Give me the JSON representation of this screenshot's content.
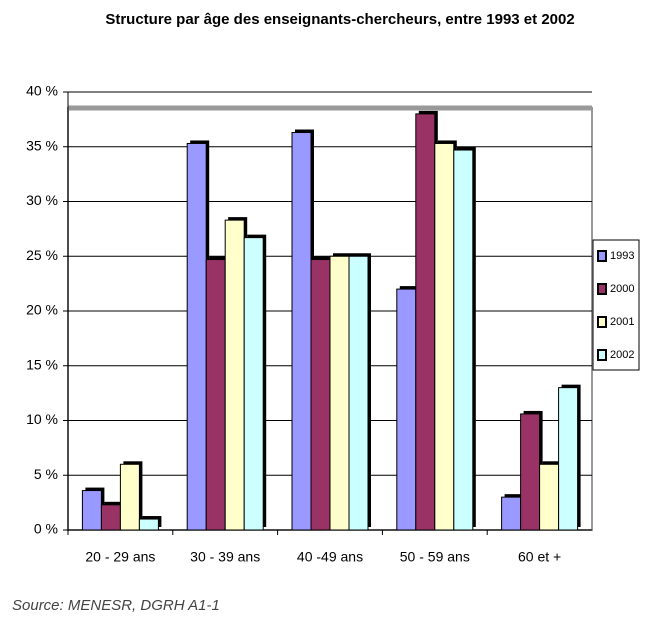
{
  "chart_data": {
    "type": "bar",
    "title": "Structure par âge des enseignants-chercheurs, entre 1993 et 2002",
    "source": "Source: MENESR, DGRH A1-1",
    "categories": [
      "20 - 29 ans",
      "30 - 39 ans",
      "40 -49 ans",
      "50 - 59 ans",
      "60 et +"
    ],
    "series": [
      {
        "name": "1993",
        "color": "#9999ff",
        "values": [
          3.6,
          35.3,
          36.3,
          22,
          3
        ]
      },
      {
        "name": "2000",
        "color": "#993366",
        "values": [
          2.3,
          24.7,
          24.7,
          38,
          10.6
        ]
      },
      {
        "name": "2001",
        "color": "#ffffcc",
        "values": [
          6,
          28.3,
          25,
          35.3,
          6
        ]
      },
      {
        "name": "2002",
        "color": "#ccffff",
        "values": [
          1,
          26.7,
          25,
          34.7,
          13
        ]
      }
    ],
    "ylim": [
      0,
      40
    ],
    "yticks": [
      {
        "value": 0,
        "label": "0 %"
      },
      {
        "value": 5,
        "label": "5 %"
      },
      {
        "value": 10,
        "label": "10 %"
      },
      {
        "value": 15,
        "label": "15 %"
      },
      {
        "value": 20,
        "label": "20 %"
      },
      {
        "value": 25,
        "label": "25 %"
      },
      {
        "value": 30,
        "label": "30 %"
      },
      {
        "value": 35,
        "label": "35 %"
      },
      {
        "value": 40,
        "label": "40 %"
      }
    ],
    "grid": true,
    "legend": "right"
  }
}
